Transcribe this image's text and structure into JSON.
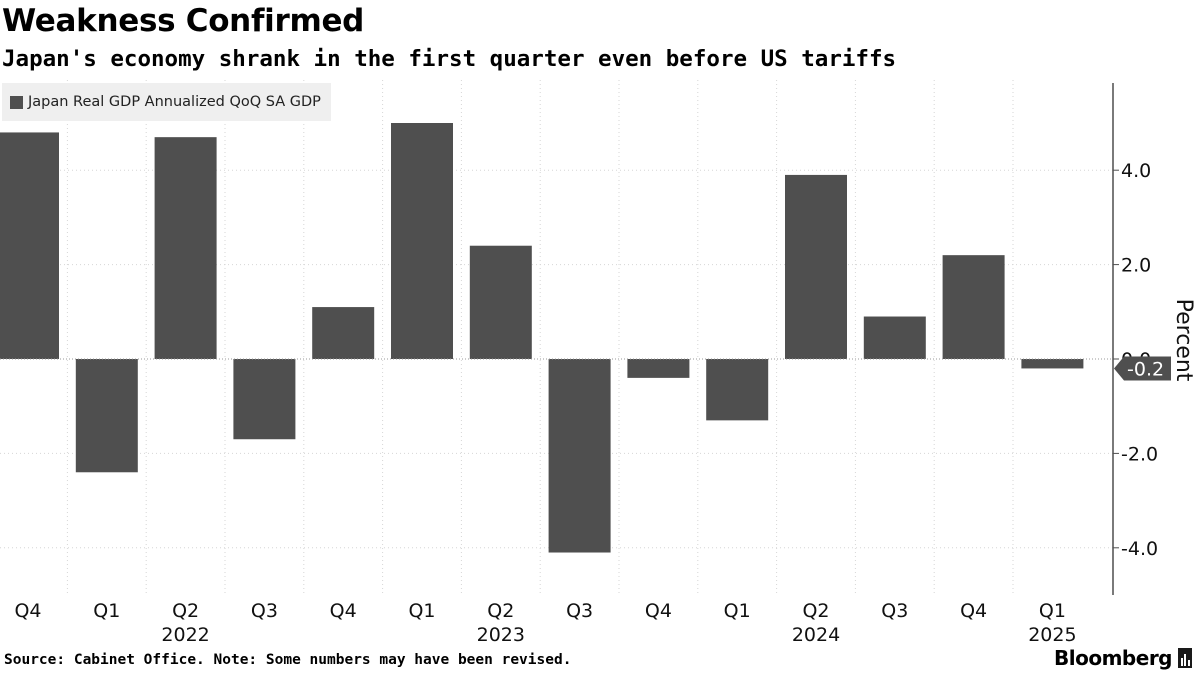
{
  "header": {
    "title": "Weakness Confirmed",
    "subtitle": "Japan's economy shrank in the first quarter even before US tariffs"
  },
  "footer": {
    "source": "Source: Cabinet Office. Note: Some numbers may have been revised.",
    "brand": "Bloomberg"
  },
  "colors": {
    "bar": "#4f4f4f",
    "axis": "#4f4f4f",
    "grid": "#d6d6d6",
    "zero_line": "#9a9a9a",
    "legend_bg": "#efefef",
    "callout_bg": "#4f4f4f",
    "callout_text": "#ffffff"
  },
  "icons": {
    "brand_mark": "bloomberg-terminal-icon"
  },
  "chart_data": {
    "type": "bar",
    "title": "Weakness Confirmed",
    "subtitle": "Japan's economy shrank in the first quarter even before US tariffs",
    "categories": [
      "Q4",
      "Q1",
      "Q2",
      "Q3",
      "Q4",
      "Q1",
      "Q2",
      "Q3",
      "Q4",
      "Q1",
      "Q2",
      "Q3",
      "Q4",
      "Q1"
    ],
    "year_labels": [
      {
        "label": "2022",
        "under": 2
      },
      {
        "label": "2023",
        "under": 6
      },
      {
        "label": "2024",
        "under": 10
      },
      {
        "label": "2025",
        "under": 13
      }
    ],
    "series": [
      {
        "name": "Japan Real GDP Annualized QoQ SA GDP",
        "values": [
          4.8,
          -2.4,
          4.7,
          -1.7,
          1.1,
          5.0,
          2.4,
          -4.1,
          -0.4,
          -1.3,
          3.9,
          0.9,
          2.2,
          -0.2
        ]
      }
    ],
    "legend": [
      "Japan Real GDP Annualized QoQ SA GDP"
    ],
    "legend_position": "top-left",
    "ylabel": "Percent",
    "ylim": [
      -5.0,
      5.8
    ],
    "yticks": [
      4.0,
      2.0,
      0.0,
      -2.0,
      -4.0
    ],
    "ytick_labels": [
      "4.0",
      "2.0",
      "0.0",
      "-2.0",
      "-4.0"
    ],
    "y_axis_side": "right",
    "grid": true,
    "last_value_callout": "-0.2"
  }
}
